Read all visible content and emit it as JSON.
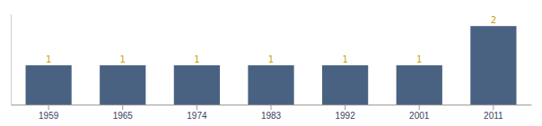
{
  "chart_data": {
    "type": "bar",
    "categories": [
      "1959",
      "1965",
      "1974",
      "1983",
      "1992",
      "2001",
      "2011"
    ],
    "values": [
      1,
      1,
      1,
      1,
      1,
      1,
      2
    ],
    "color": "#4A6281",
    "ylim": [
      0,
      2.3
    ],
    "data_labels": true,
    "tick_labels": "x",
    "grid": false
  }
}
